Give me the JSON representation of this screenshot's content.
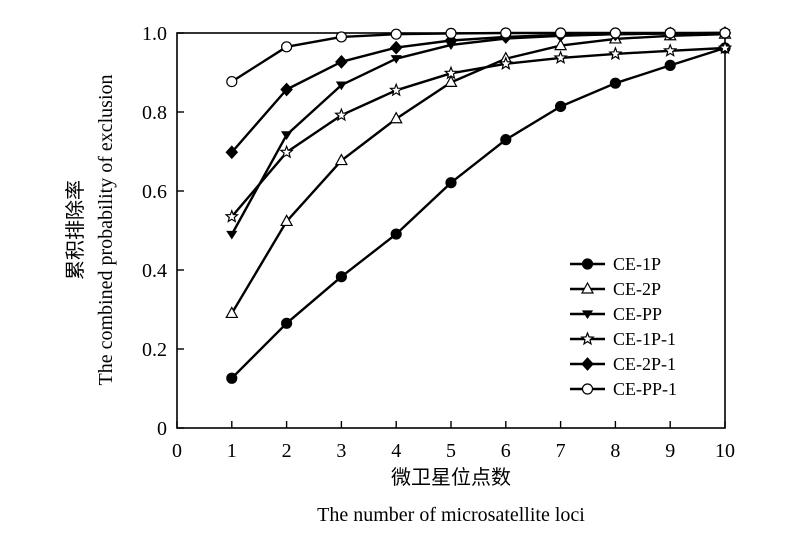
{
  "chart_data": {
    "type": "line",
    "title": "",
    "xlabel": "微卫星位点数",
    "xlabel_en": "The number of microsatellite loci",
    "ylabel": "累积排除率",
    "ylabel_en": "The combined probability of exclusion",
    "xlim": [
      0,
      10
    ],
    "ylim": [
      0,
      1.0
    ],
    "x_ticks": [
      0,
      1,
      2,
      3,
      4,
      5,
      6,
      7,
      8,
      9,
      10
    ],
    "y_ticks": [
      0,
      0.2,
      0.4,
      0.6,
      0.8,
      1.0
    ],
    "y_tick_labels": [
      "0",
      "0.2",
      "0.4",
      "0.6",
      "0.8",
      "1.0"
    ],
    "grid": false,
    "legend_position": "bottom-right",
    "x": [
      1,
      2,
      3,
      4,
      5,
      6,
      7,
      8,
      9,
      10
    ],
    "series": [
      {
        "name": "CE-1P",
        "marker": "filled-circle",
        "values": [
          0.126,
          0.265,
          0.383,
          0.491,
          0.621,
          0.73,
          0.814,
          0.873,
          0.918,
          0.962
        ]
      },
      {
        "name": "CE-2P",
        "marker": "open-triangle-up",
        "values": [
          0.29,
          0.523,
          0.677,
          0.783,
          0.875,
          0.935,
          0.968,
          0.985,
          0.993,
          0.997
        ]
      },
      {
        "name": "CE-PP",
        "marker": "filled-triangle-down",
        "values": [
          0.49,
          0.742,
          0.868,
          0.935,
          0.97,
          0.986,
          0.993,
          0.997,
          0.999,
          1.0
        ]
      },
      {
        "name": "CE-1P-1",
        "marker": "star",
        "values": [
          0.535,
          0.698,
          0.792,
          0.855,
          0.898,
          0.922,
          0.937,
          0.947,
          0.955,
          0.962
        ]
      },
      {
        "name": "CE-2P-1",
        "marker": "filled-diamond",
        "values": [
          0.698,
          0.857,
          0.927,
          0.963,
          0.981,
          0.99,
          0.995,
          0.997,
          0.999,
          1.0
        ]
      },
      {
        "name": "CE-PP-1",
        "marker": "open-circle",
        "values": [
          0.877,
          0.965,
          0.99,
          0.997,
          0.999,
          1.0,
          1.0,
          1.0,
          1.0,
          1.0
        ]
      }
    ]
  }
}
